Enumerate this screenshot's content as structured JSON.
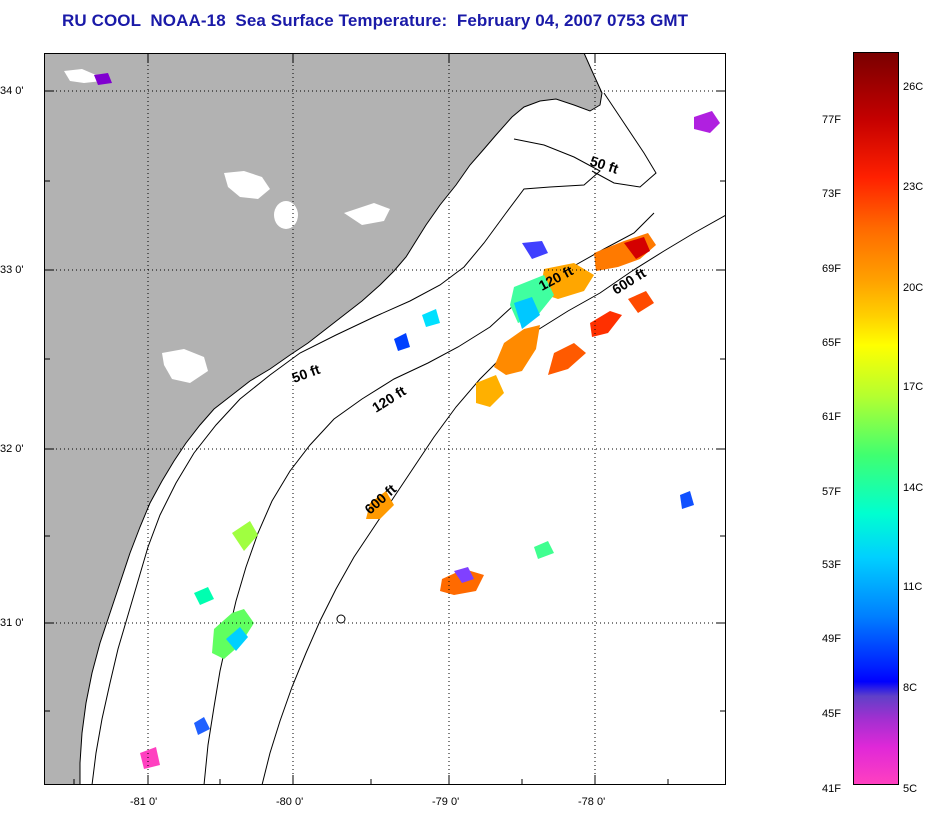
{
  "title": "RU COOL  NOAA-18  Sea Surface Temperature:  February 04, 2007 0753 GMT",
  "map": {
    "lat_labels": [
      "34 0'",
      "33 0'",
      "32 0'",
      "31 0'"
    ],
    "lon_labels": [
      "-81 0'",
      "-80 0'",
      "-79 0'",
      "-78 0'"
    ],
    "depth_labels": [
      "50 ft",
      "50 ft",
      "120 ft",
      "120 ft",
      "600 ft",
      "600 ft"
    ],
    "colors": {
      "land": "#b2b2b2",
      "ocean": "#ffffff",
      "grid": "#000000"
    }
  },
  "colorbar": {
    "fahrenheit": [
      "77F",
      "73F",
      "69F",
      "65F",
      "61F",
      "57F",
      "53F",
      "49F",
      "45F",
      "41F"
    ],
    "celsius": [
      "26C",
      "23C",
      "20C",
      "17C",
      "14C",
      "11C",
      "8C",
      "5C"
    ]
  }
}
